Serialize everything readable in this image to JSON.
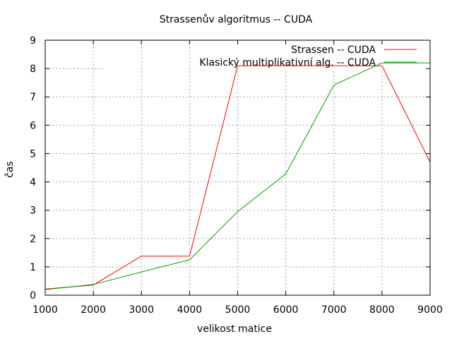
{
  "chart_data": {
    "type": "line",
    "title": "Strassenův algoritmus -- CUDA",
    "xlabel": "velikost matice",
    "ylabel": "čas",
    "x": [
      1000,
      2000,
      3000,
      4000,
      5000,
      6000,
      7000,
      8000,
      9000
    ],
    "xlim": [
      1000,
      9000
    ],
    "ylim": [
      0,
      9
    ],
    "xticks": [
      "1000",
      "2000",
      "3000",
      "4000",
      "5000",
      "6000",
      "7000",
      "8000",
      "9000"
    ],
    "yticks": [
      "0",
      "1",
      "2",
      "3",
      "4",
      "5",
      "6",
      "7",
      "8",
      "9"
    ],
    "grid": true,
    "legend_position": "top-right",
    "series": [
      {
        "name": "Strassen -- CUDA",
        "color": "#ff0000",
        "values": [
          0.22,
          0.36,
          1.38,
          1.38,
          8.1,
          8.1,
          8.1,
          8.1,
          4.7
        ]
      },
      {
        "name": "Klasický multiplikativní alg. -- CUDA",
        "color": "#00a000",
        "values": [
          0.2,
          0.38,
          0.82,
          1.25,
          2.95,
          4.28,
          7.42,
          8.2,
          8.2
        ]
      }
    ]
  }
}
